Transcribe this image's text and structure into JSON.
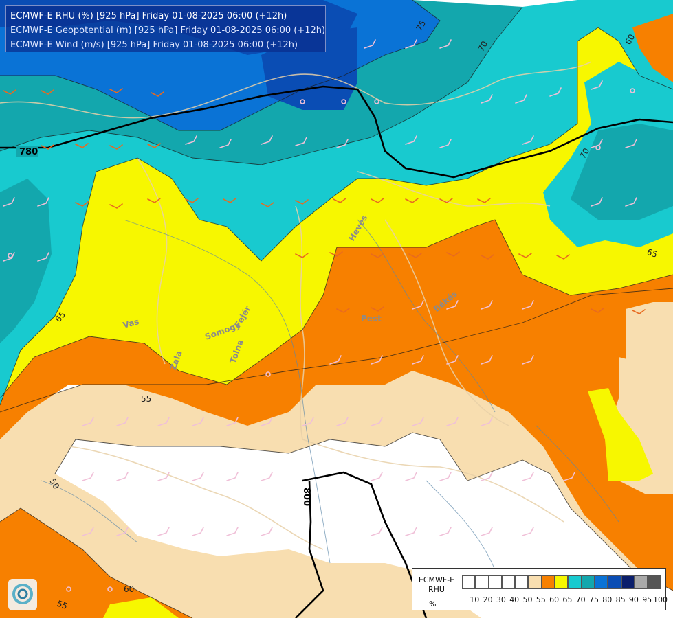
{
  "titles": {
    "line1": "ECMWF-E RHU (%) [925 hPa] Friday 01-08-2025 06:00 (+12h)",
    "line2": "ECMWF-E Geopotential (m) [925 hPa] Friday 01-08-2025 06:00 (+12h)",
    "line3": "ECMWF-E Wind (m/s) [925 hPa] Friday 01-08-2025 06:00 (+12h)"
  },
  "legend": {
    "name_line1": "ECMWF-E",
    "name_line2": "RHU",
    "unit": "%",
    "colors": [
      "#ffffff",
      "#ffffff",
      "#ffffff",
      "#ffffff",
      "#ffffff",
      "#f8deb0",
      "#f78000",
      "#f7f700",
      "#18cacf",
      "#13a7ad",
      "#0a73d6",
      "#0a4db4",
      "#0a1e6b",
      "#a9a9a9",
      "#555555"
    ],
    "ticks": [
      "10",
      "20",
      "30",
      "40",
      "50",
      "55",
      "60",
      "65",
      "70",
      "75",
      "80",
      "85",
      "90",
      "95",
      "100"
    ]
  },
  "contour_labels": {
    "rhu_75": "75",
    "rhu_70_a": "70",
    "rhu_70_b": "70",
    "rhu_60_ne": "60",
    "rhu_65_e": "65",
    "rhu_65_w": "65",
    "rhu_55_w": "55",
    "rhu_50_sw": "50",
    "rhu_60_s": "60",
    "rhu_55_s": "55",
    "geo_780": "780",
    "geo_800": "800"
  },
  "place_labels": {
    "vas": "Vas",
    "somogy": "Somogy",
    "fejer": "Fejér",
    "tolna": "Tolna",
    "zala": "Zala",
    "pest": "Pest",
    "bekes": "Békés",
    "heves": "Heves"
  }
}
